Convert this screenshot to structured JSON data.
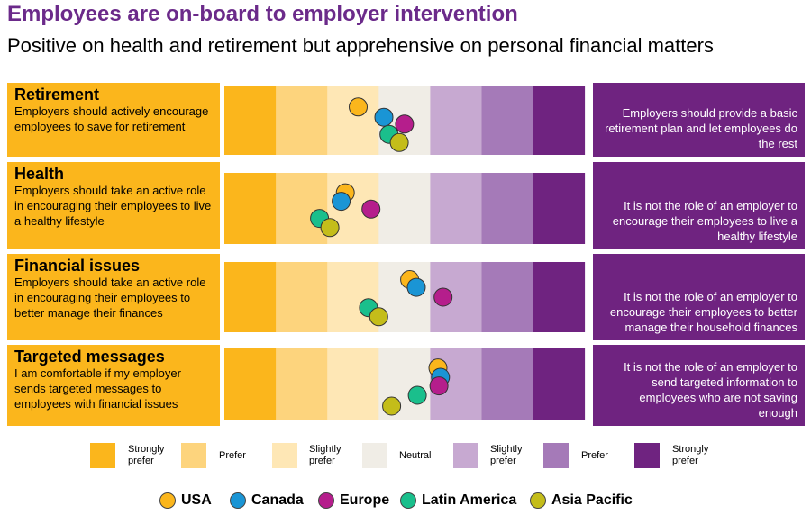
{
  "title": "Employees are on-board to employer intervention",
  "subtitle": "Positive on health and retirement but apprehensive on personal financial matters",
  "rows": [
    {
      "heading": "Retirement",
      "left_text": "Employers should actively encourage employees to save for retirement",
      "right_text": "Employers should provide a basic retirement plan and  let employees do the rest"
    },
    {
      "heading": "Health",
      "left_text": "Employers should take an active role in encouraging their employees to live a healthy lifestyle",
      "right_text": "It is not the role of an employer to encourage their employees to live a healthy lifestyle"
    },
    {
      "heading": "Financial issues",
      "left_text": "Employers should take an active role in encouraging their employees to better manage their finances",
      "right_text": "It is not the role of an employer to encourage their employees to better manage their household finances"
    },
    {
      "heading": "Targeted messages",
      "left_text": "I am comfortable if my employer sends targeted messages to employees with financial issues",
      "right_text": "It is not the role of an employer to send targeted information to employees who are not saving enough"
    }
  ],
  "chart_data": {
    "type": "scatter",
    "title": "Employees are on-board to employer intervention",
    "x_scale": [
      "Strongly prefer",
      "Prefer",
      "Slightly prefer",
      "Neutral",
      "Slightly prefer",
      "Prefer",
      "Strongly prefer"
    ],
    "x_range": [
      1,
      8
    ],
    "note": "x is the position on the 7-band preference scale (1 = left edge of 'Strongly prefer' left statement, 8 = right edge of 'Strongly prefer' right statement); y is the vertical position within the row band (0 = top, 1 = bottom)",
    "band_colors": [
      "#fbb61c",
      "#fdd47d",
      "#fee7b5",
      "#f0ede6",
      "#c7a9d1",
      "#a57ab8",
      "#6f2380"
    ],
    "series": [
      {
        "name": "USA",
        "color": "#fbb61c",
        "points": [
          {
            "row": "Retirement",
            "x": 3.6,
            "y": 0.3
          },
          {
            "row": "Health",
            "x": 3.35,
            "y": 0.28
          },
          {
            "row": "Financial issues",
            "x": 4.6,
            "y": 0.25
          },
          {
            "row": "Targeted messages",
            "x": 5.15,
            "y": 0.27
          }
        ]
      },
      {
        "name": "Canada",
        "color": "#1a95d5",
        "points": [
          {
            "row": "Retirement",
            "x": 4.1,
            "y": 0.45
          },
          {
            "row": "Health",
            "x": 3.27,
            "y": 0.4
          },
          {
            "row": "Financial issues",
            "x": 4.73,
            "y": 0.36
          },
          {
            "row": "Targeted messages",
            "x": 5.2,
            "y": 0.4
          }
        ]
      },
      {
        "name": "Europe",
        "color": "#b51e8c",
        "points": [
          {
            "row": "Retirement",
            "x": 4.5,
            "y": 0.55
          },
          {
            "row": "Health",
            "x": 3.85,
            "y": 0.51
          },
          {
            "row": "Financial issues",
            "x": 5.25,
            "y": 0.5
          },
          {
            "row": "Targeted messages",
            "x": 5.17,
            "y": 0.52
          }
        ]
      },
      {
        "name": "Latin America",
        "color": "#1abf8c",
        "points": [
          {
            "row": "Retirement",
            "x": 4.2,
            "y": 0.7
          },
          {
            "row": "Health",
            "x": 2.85,
            "y": 0.64
          },
          {
            "row": "Financial issues",
            "x": 3.8,
            "y": 0.65
          },
          {
            "row": "Targeted messages",
            "x": 4.75,
            "y": 0.65
          }
        ]
      },
      {
        "name": "Asia Pacific",
        "color": "#c4bd1a",
        "points": [
          {
            "row": "Retirement",
            "x": 4.4,
            "y": 0.82
          },
          {
            "row": "Health",
            "x": 3.05,
            "y": 0.77
          },
          {
            "row": "Financial issues",
            "x": 4.0,
            "y": 0.78
          },
          {
            "row": "Targeted messages",
            "x": 4.25,
            "y": 0.8
          }
        ]
      }
    ]
  },
  "legend": {
    "scale": [
      {
        "label": "Strongly prefer",
        "line1": "Strongly",
        "line2": "prefer",
        "color": "#fbb61c"
      },
      {
        "label": "Prefer",
        "line1": "Prefer",
        "line2": "",
        "color": "#fdd47d"
      },
      {
        "label": "Slightly prefer",
        "line1": "Slightly",
        "line2": "prefer",
        "color": "#fee7b5"
      },
      {
        "label": "Neutral",
        "line1": "Neutral",
        "line2": "",
        "color": "#f0ede6"
      },
      {
        "label": "Slightly prefer",
        "line1": "Slightly",
        "line2": "prefer",
        "color": "#c7a9d1"
      },
      {
        "label": "Prefer",
        "line1": "Prefer",
        "line2": "",
        "color": "#a57ab8"
      },
      {
        "label": "Strongly prefer",
        "line1": "Strongly",
        "line2": "prefer",
        "color": "#6f2380"
      }
    ],
    "regions": [
      {
        "name": "USA",
        "color": "#fbb61c"
      },
      {
        "name": "Canada",
        "color": "#1a95d5"
      },
      {
        "name": "Europe",
        "color": "#b51e8c"
      },
      {
        "name": "Latin America",
        "color": "#1abf8c"
      },
      {
        "name": "Asia Pacific",
        "color": "#c4bd1a"
      }
    ]
  }
}
